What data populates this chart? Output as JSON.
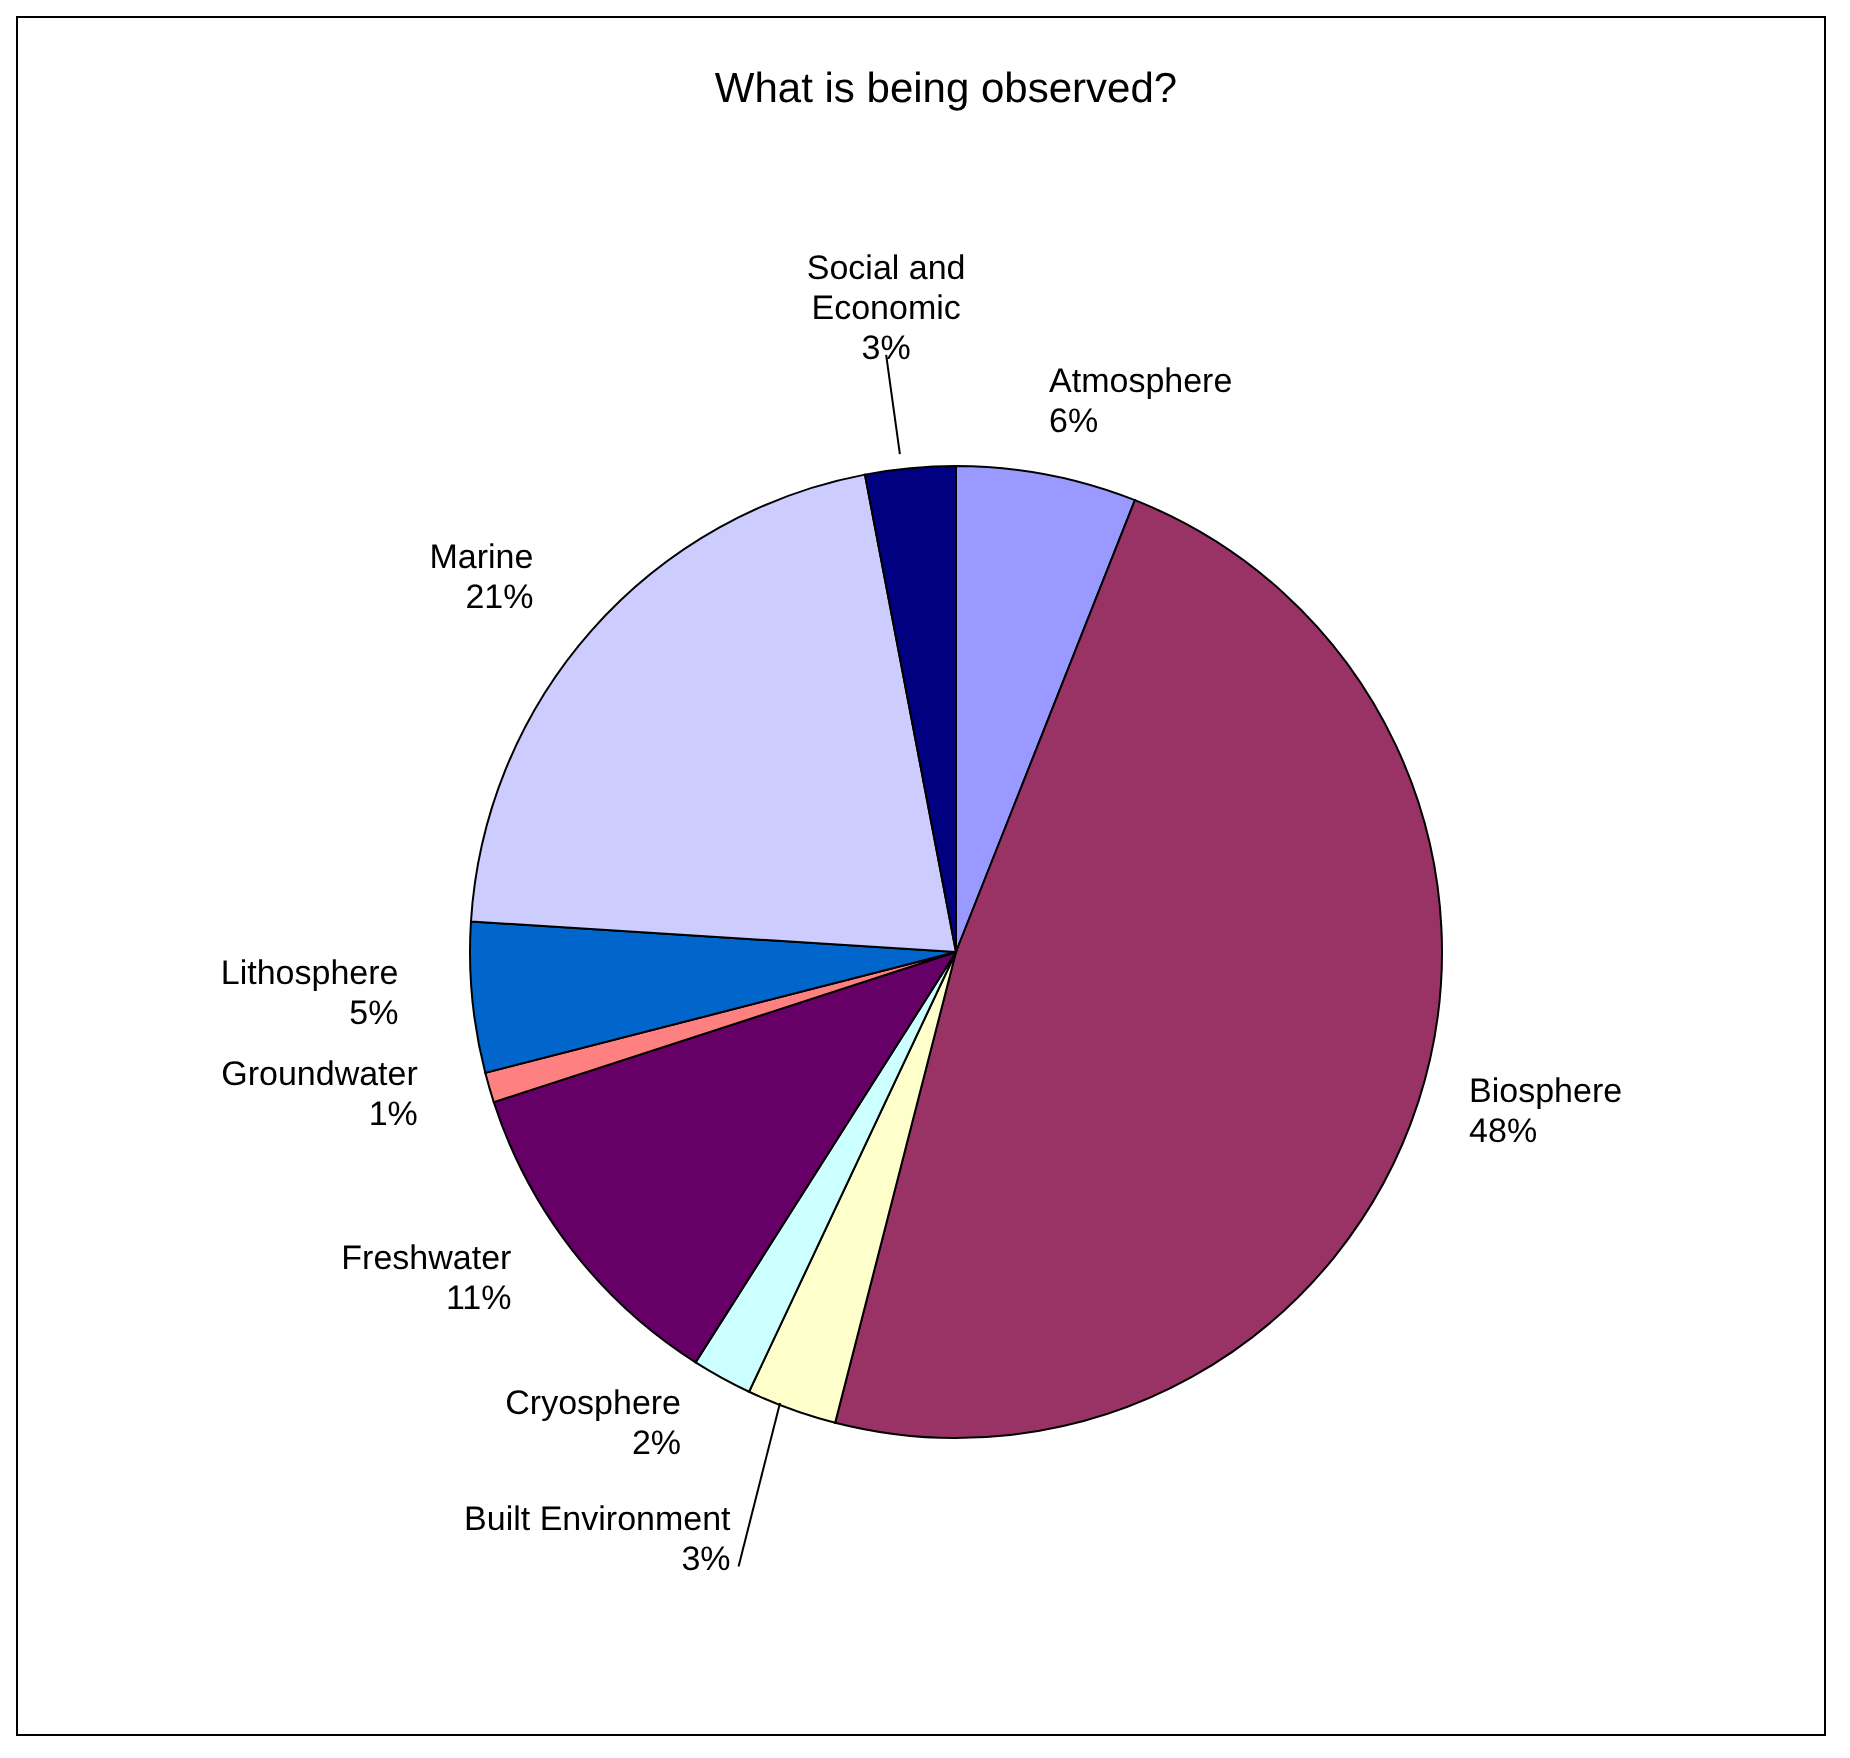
{
  "chart_data": {
    "type": "pie",
    "title": "What is being observed?",
    "categories": [
      "Atmosphere",
      "Biosphere",
      "Built Environment",
      "Cryosphere",
      "Freshwater",
      "Groundwater",
      "Lithosphere",
      "Marine",
      "Social and Economic"
    ],
    "values": [
      6,
      48,
      3,
      2,
      11,
      1,
      5,
      21,
      3
    ],
    "value_labels": [
      "6%",
      "48%",
      "3%",
      "2%",
      "11%",
      "1%",
      "5%",
      "21%",
      "3%"
    ],
    "colors": [
      "#9999ff",
      "#993366",
      "#ffffcc",
      "#ccffff",
      "#660066",
      "#ff8080",
      "#0066cc",
      "#ccccff",
      "#000080"
    ]
  }
}
